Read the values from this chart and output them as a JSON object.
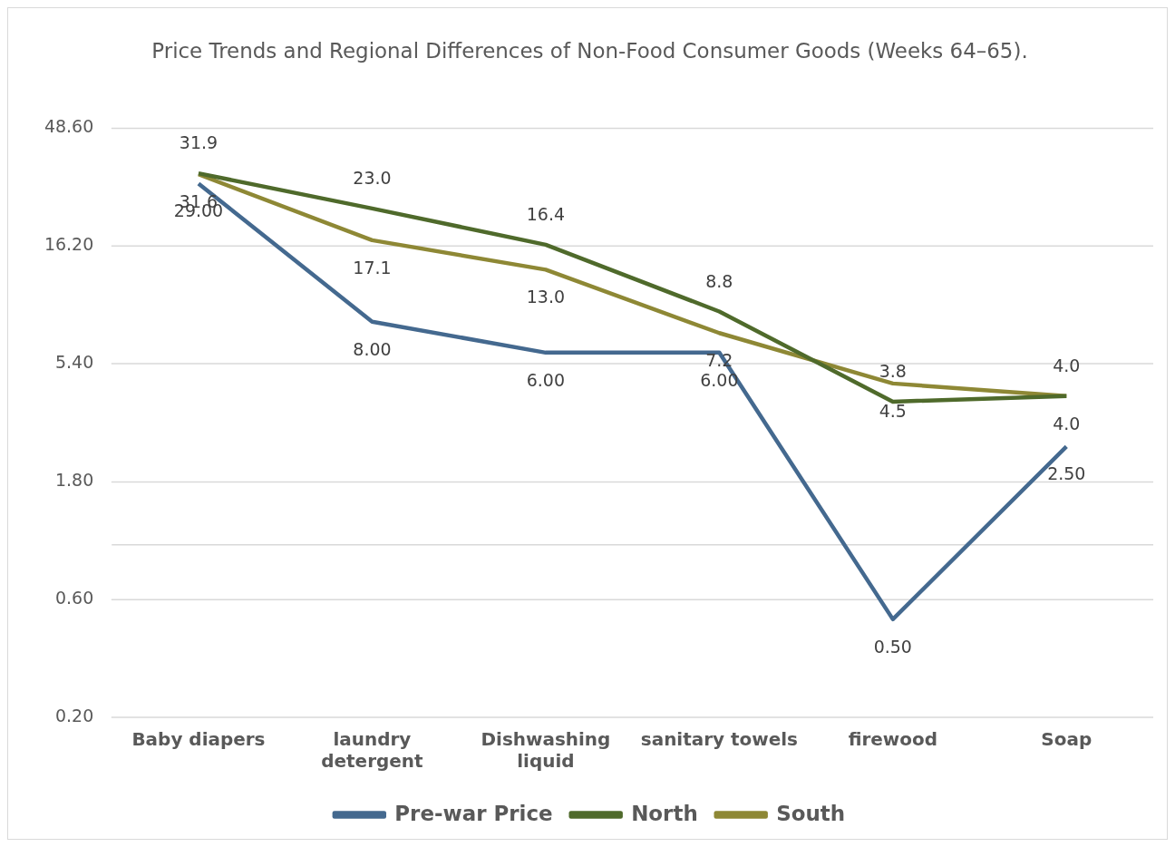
{
  "chart_data": {
    "type": "line",
    "title": "Price Trends and Regional Differences of Non-Food Consumer Goods (Weeks 64–65).",
    "categories": [
      "Baby diapers",
      "laundry detergent",
      "Dishwashing liquid",
      "sanitary towels",
      "firewood",
      "Soap"
    ],
    "series": [
      {
        "name": "Pre-war Price",
        "color": "#44698f",
        "values": [
          29.0,
          8.0,
          6.0,
          6.0,
          0.5,
          2.5
        ],
        "value_labels": [
          "29.00",
          "8.00",
          "6.00",
          "6.00",
          "0.50",
          "2.50"
        ]
      },
      {
        "name": "North",
        "color": "#4f6a2b",
        "values": [
          31.9,
          23.0,
          16.4,
          8.8,
          3.8,
          4.0
        ],
        "value_labels": [
          "31.9",
          "23.0",
          "16.4",
          "8.8",
          "3.8",
          "4.0"
        ]
      },
      {
        "name": "South",
        "color": "#8e8835",
        "values": [
          31.6,
          17.1,
          13.0,
          7.2,
          4.5,
          4.0
        ],
        "value_labels": [
          "31.6",
          "17.1",
          "13.0",
          "7.2",
          "4.5",
          "4.0"
        ]
      }
    ],
    "log": "y",
    "ylim": [
      0.2,
      48.6
    ],
    "yticks": [
      {
        "value": 0.2,
        "label": "0.20"
      },
      {
        "value": 0.6,
        "label": "0.60"
      },
      {
        "value": 1.8,
        "label": "1.80"
      },
      {
        "value": 5.4,
        "label": "5.40"
      },
      {
        "value": 16.2,
        "label": "16.20"
      },
      {
        "value": 48.6,
        "label": "48.60"
      }
    ],
    "ref_lines": [
      {
        "axis": "y",
        "value": 1,
        "color": "#d9d9d9"
      }
    ],
    "grid": "y",
    "legend": "bottom",
    "marker": "none",
    "line_style": "solid"
  }
}
